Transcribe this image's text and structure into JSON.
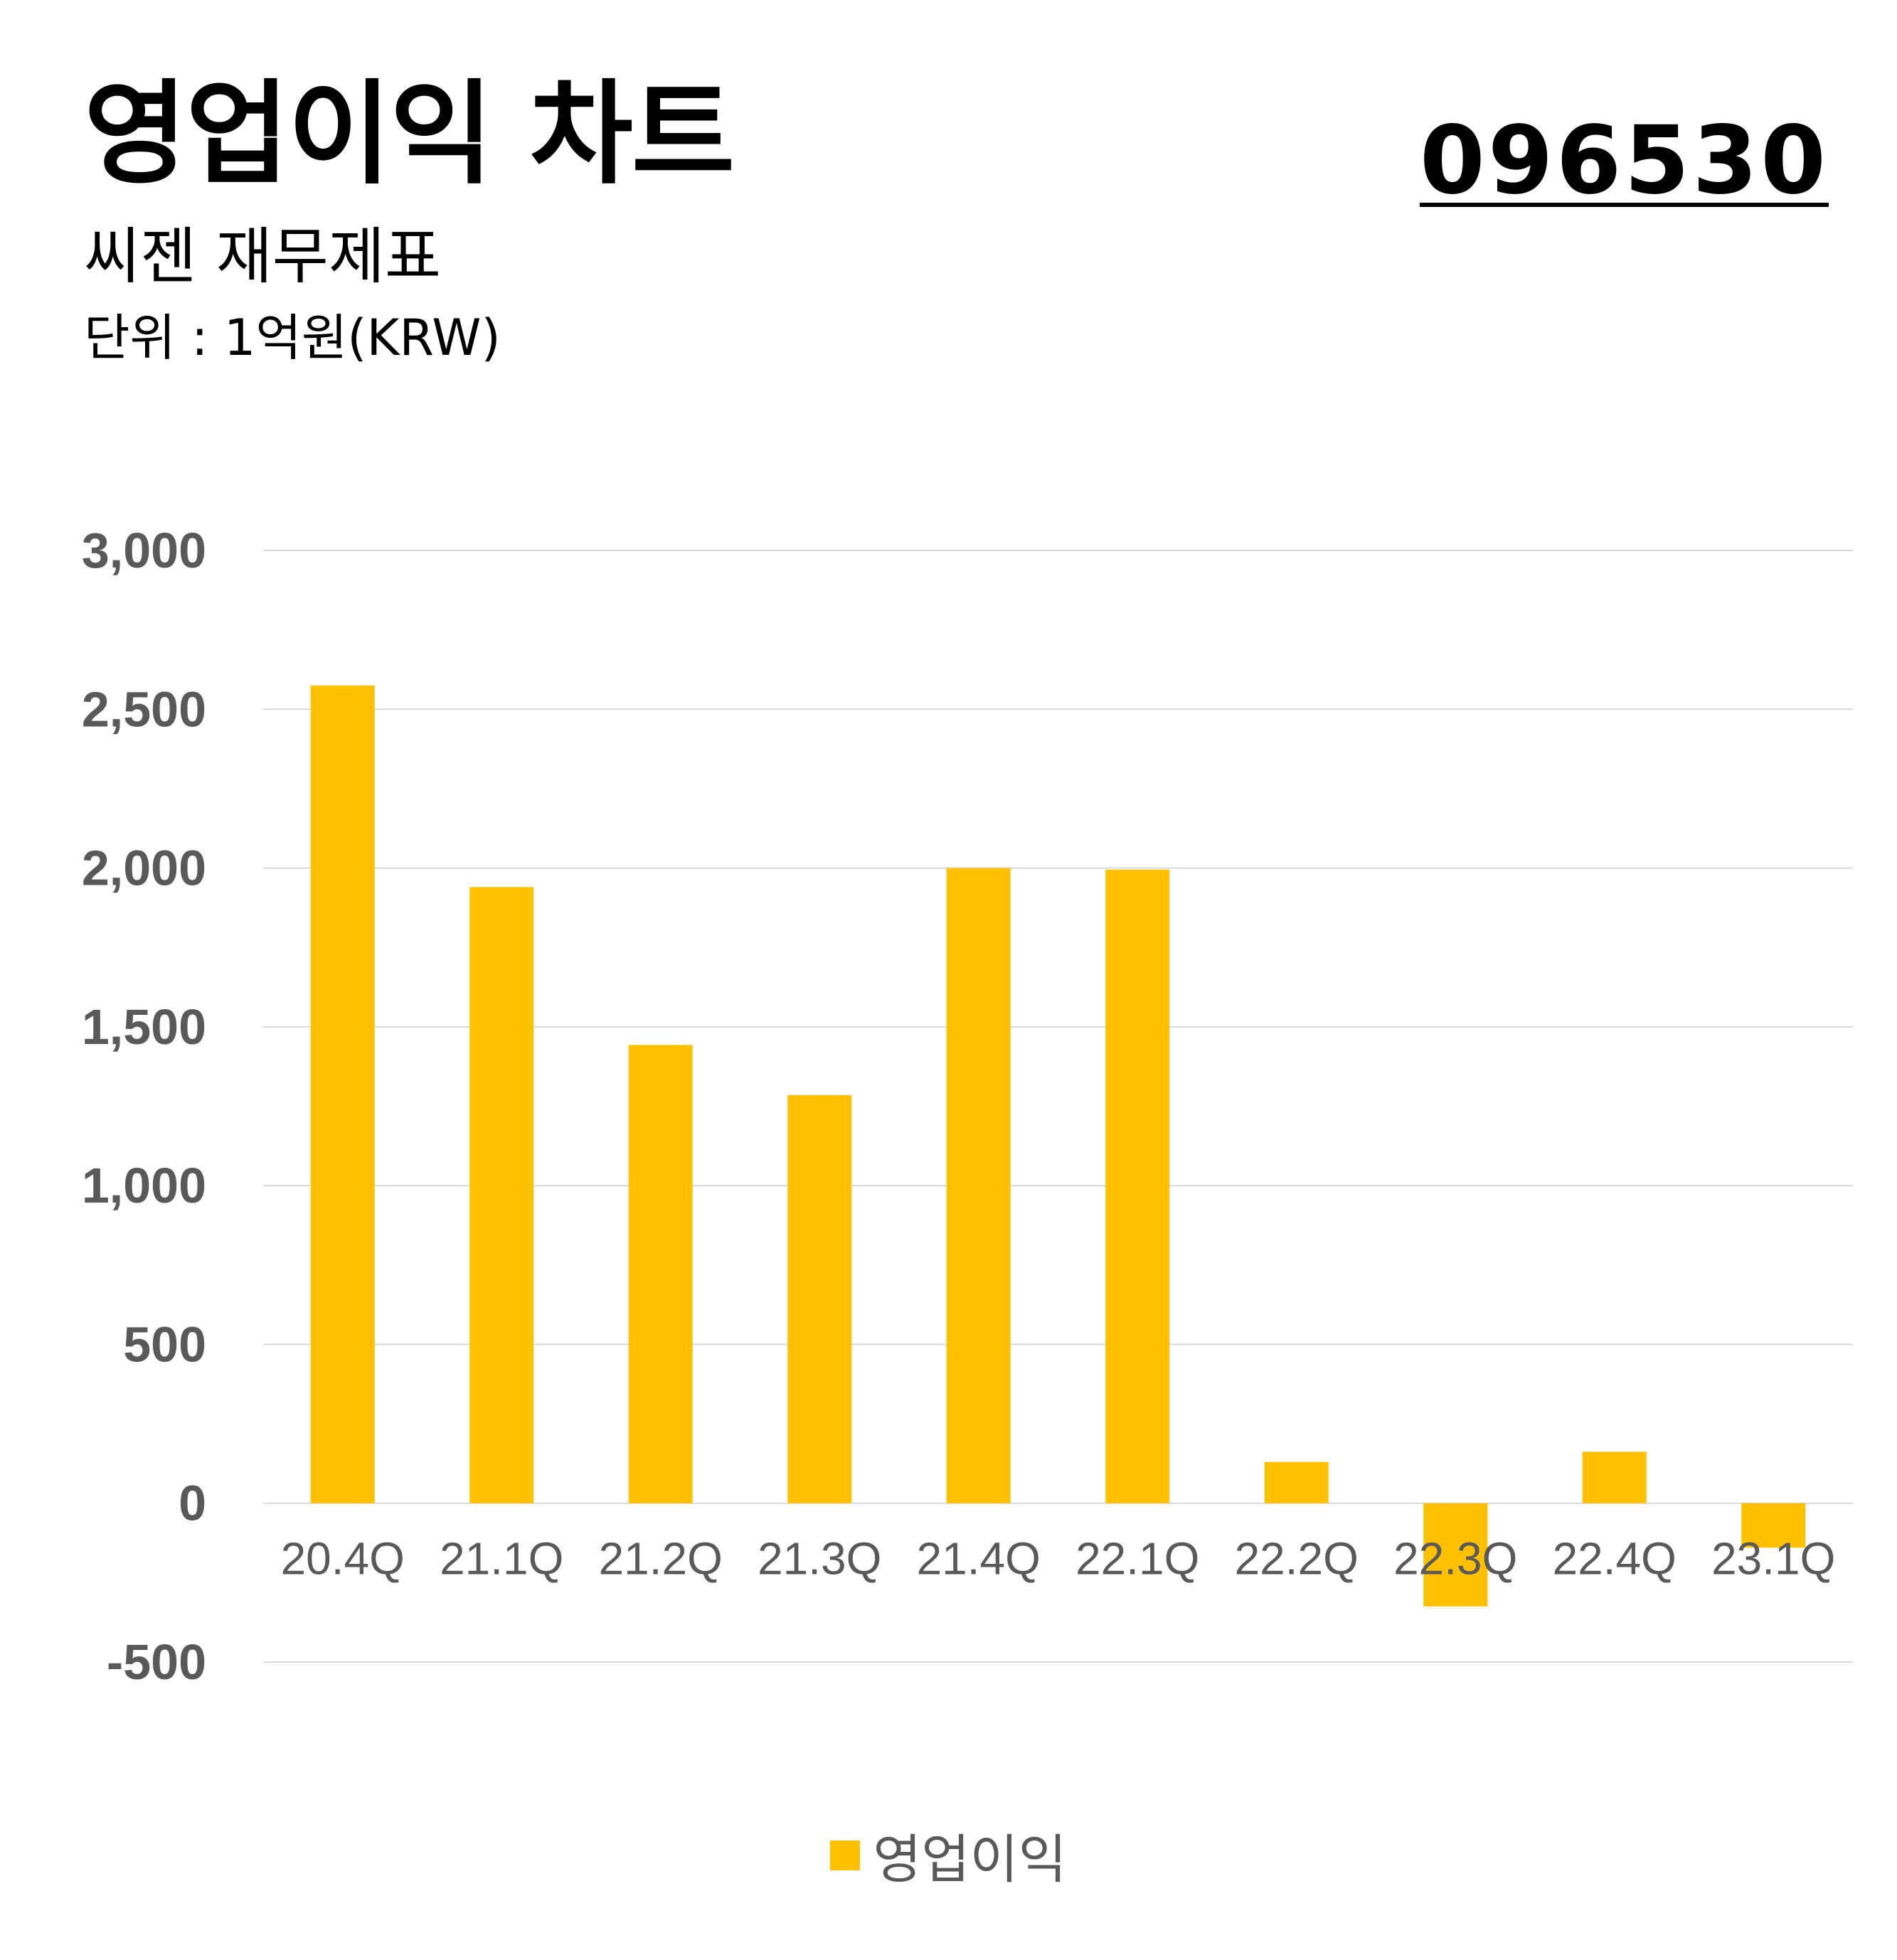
{
  "header": {
    "title": "영업이익 차트",
    "subtitle": "씨젠 재무제표",
    "unit": "단위 : 1억원(KRW)",
    "code": "096530"
  },
  "colors": {
    "bar": "#FFC000",
    "grid": "#D9D9D9",
    "axis_text": "#595959"
  },
  "chart_data": {
    "type": "bar",
    "title": "영업이익 차트",
    "xlabel": "",
    "ylabel": "",
    "categories": [
      "20.4Q",
      "21.1Q",
      "21.2Q",
      "21.3Q",
      "21.4Q",
      "22.1Q",
      "22.2Q",
      "22.3Q",
      "22.4Q",
      "23.1Q"
    ],
    "series": [
      {
        "name": "영업이익",
        "values": [
          2575,
          1940,
          1443,
          1285,
          2000,
          1995,
          130,
          -325,
          162,
          -140
        ]
      }
    ],
    "ylim": [
      -500,
      3000
    ],
    "yticks": [
      3000,
      2500,
      2000,
      1500,
      1000,
      500,
      0,
      -500
    ],
    "ytick_labels": [
      "3,000",
      "2,500",
      "2,000",
      "1,500",
      "1,000",
      "500",
      "0",
      "-500"
    ],
    "grid": true,
    "legend": "bottom"
  },
  "legend": {
    "label": "영업이익"
  }
}
